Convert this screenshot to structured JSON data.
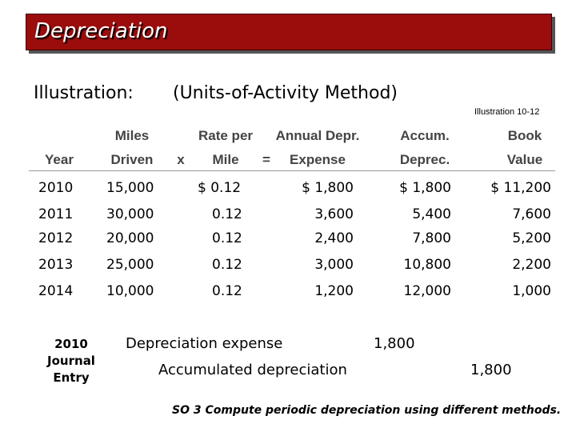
{
  "slide": {
    "title": "Depreciation",
    "illustration_label": "Illustration:",
    "method": "(Units-of-Activity Method)",
    "illustration_ref": "Illustration 10-12"
  },
  "table": {
    "headers": {
      "year": [
        "",
        "Year"
      ],
      "miles": [
        "Miles",
        "Driven"
      ],
      "times": [
        "",
        "x"
      ],
      "rate": [
        "Rate per",
        "Mile"
      ],
      "equals": [
        "",
        "="
      ],
      "expense": [
        "Annual Depr.",
        "Expense"
      ],
      "accum": [
        "Accum.",
        "Deprec."
      ],
      "book": [
        "Book",
        "Value"
      ]
    },
    "rows": [
      {
        "year": "2010",
        "miles": "15,000",
        "rate": "$ 0.12",
        "expense": "$ 1,800",
        "accum": "$ 1,800",
        "book": "$ 11,200"
      },
      {
        "year": "2011",
        "miles": "30,000",
        "rate": "0.12",
        "expense": "3,600",
        "accum": "5,400",
        "book": "7,600"
      },
      {
        "year": "2012",
        "miles": "20,000",
        "rate": "0.12",
        "expense": "2,400",
        "accum": "7,800",
        "book": "5,200"
      },
      {
        "year": "2013",
        "miles": "25,000",
        "rate": "0.12",
        "expense": "3,000",
        "accum": "10,800",
        "book": "2,200"
      },
      {
        "year": "2014",
        "miles": "10,000",
        "rate": "0.12",
        "expense": "1,200",
        "accum": "12,000",
        "book": "1,000"
      }
    ]
  },
  "journal": {
    "label": [
      "2010",
      "Journal",
      "Entry"
    ],
    "debit_account": "Depreciation expense",
    "debit_amount": "1,800",
    "credit_account": "Accumulated depreciation",
    "credit_amount": "1,800"
  },
  "footer": "SO 3  Compute periodic depreciation using different methods."
}
